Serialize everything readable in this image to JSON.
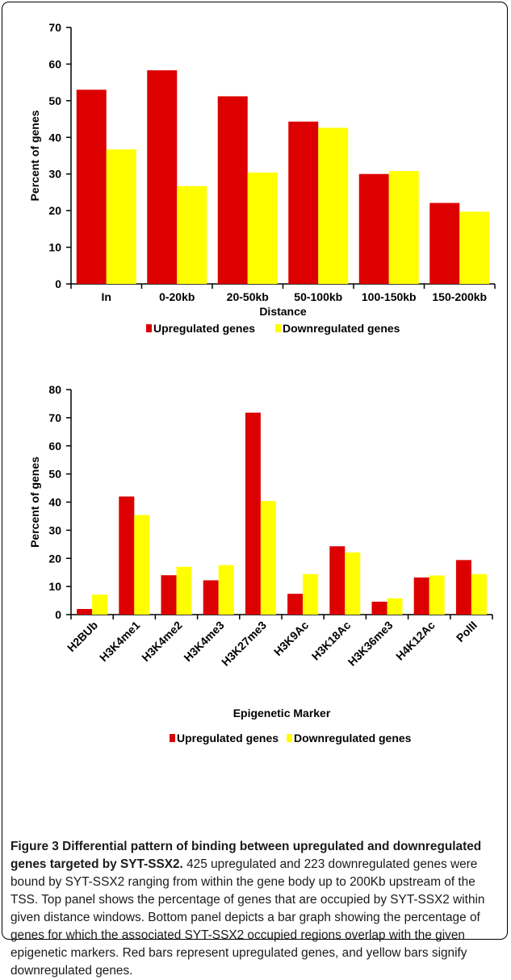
{
  "colors": {
    "upregulated": "#dd0000",
    "downregulated": "#ffff00",
    "axis": "#000000"
  },
  "chart_data": [
    {
      "type": "bar",
      "title": "",
      "xlabel": "Distance",
      "ylabel": "Percent of genes",
      "ylim": [
        0,
        70
      ],
      "yticks": [
        "0",
        "10",
        "20",
        "30",
        "40",
        "50",
        "60",
        "70"
      ],
      "grid": false,
      "legend_position": "bottom",
      "categories": [
        "In",
        "0-20kb",
        "20-50kb",
        "50-100kb",
        "100-150kb",
        "150-200kb"
      ],
      "series": [
        {
          "name": "Upregulated genes",
          "values": [
            53,
            58.3,
            51.2,
            44.3,
            30,
            22.1
          ]
        },
        {
          "name": "Downregulated genes",
          "values": [
            36.7,
            26.7,
            30.4,
            42.6,
            30.8,
            19.7
          ]
        }
      ]
    },
    {
      "type": "bar",
      "title": "",
      "xlabel": "Epigenetic Marker",
      "ylabel": "Percent of genes",
      "ylim": [
        0,
        80
      ],
      "yticks": [
        "0",
        "10",
        "20",
        "30",
        "40",
        "50",
        "60",
        "70",
        "80"
      ],
      "grid": false,
      "legend_position": "bottom",
      "categories": [
        "H2BUb",
        "H3K4me1",
        "H3K4me2",
        "H3K4me3",
        "H3K27me3",
        "H3K9Ac",
        "H3K18Ac",
        "H3K36me3",
        "H4K12Ac",
        "PolII"
      ],
      "series": [
        {
          "name": "Upregulated genes",
          "values": [
            2,
            42,
            14,
            12.2,
            71.8,
            7.4,
            24.3,
            4.6,
            13.2,
            19.4
          ]
        },
        {
          "name": "Downregulated genes",
          "values": [
            7.1,
            35.4,
            17,
            17.6,
            40.4,
            14.4,
            22.1,
            5.8,
            13.9,
            14.4
          ]
        }
      ]
    }
  ],
  "caption": {
    "title": "Figure 3 Differential pattern of binding between upregulated and downregulated genes targeted by SYT-SSX2.",
    "body": " 425 upregulated and 223 downregulated genes were bound by SYT-SSX2 ranging from within the gene body up to 200Kb upstream of the TSS. Top panel shows the percentage of genes that are occupied by SYT-SSX2 within given distance windows. Bottom panel depicts a bar graph showing the percentage of genes for which the associated SYT-SSX2 occupied regions overlap with the given epigenetic markers. Red bars represent upregulated genes, and yellow bars signify downregulated genes."
  }
}
